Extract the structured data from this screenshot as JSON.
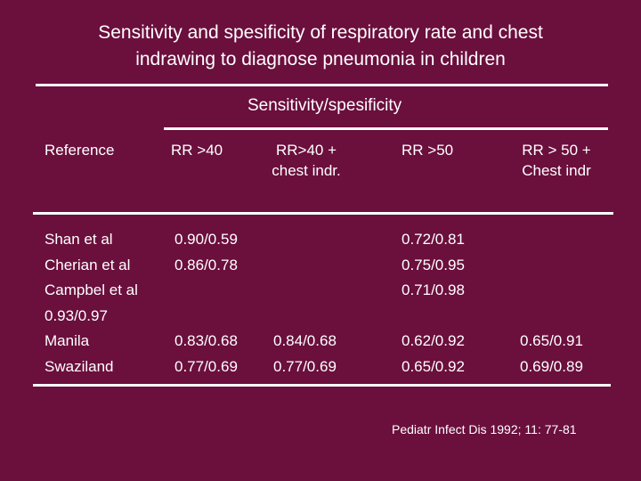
{
  "title": {
    "line1": "Sensitivity and  spesificity of respiratory rate and chest",
    "line2": "indrawing to diagnose pneumonia in children"
  },
  "table": {
    "group_header": "Sensitivity/spesificity",
    "columns": {
      "reference": "Reference",
      "rr40": "RR >40",
      "rr40_chest_line1": "RR>40  +",
      "rr40_chest_line2": "chest indr.",
      "rr50": "RR >50",
      "rr50_chest_line1": "RR > 50 +",
      "rr50_chest_line2": "Chest indr"
    },
    "references": [
      "Shan et al",
      "Cherian et al",
      "Campbel et al",
      "0.93/0.97",
      "Manila",
      "Swaziland"
    ],
    "rr40_values": {
      "shan": "0.90/0.59",
      "cherian": "0.86/0.78",
      "manila": "0.83/0.68",
      "swaziland": "0.77/0.69"
    },
    "rr40_chest_values": {
      "manila": "0.84/0.68",
      "swaziland": "0.77/0.69"
    },
    "rr50_values": {
      "shan": "0.72/0.81",
      "cherian": "0.75/0.95",
      "campbel": "0.71/0.98",
      "manila": "0.62/0.92",
      "swaziland": "0.65/0.92"
    },
    "rr50_chest_values": {
      "manila": "0.65/0.91",
      "swaziland": "0.69/0.89"
    }
  },
  "citation": "Pediatr Infect Dis 1992; 11: 77-81"
}
